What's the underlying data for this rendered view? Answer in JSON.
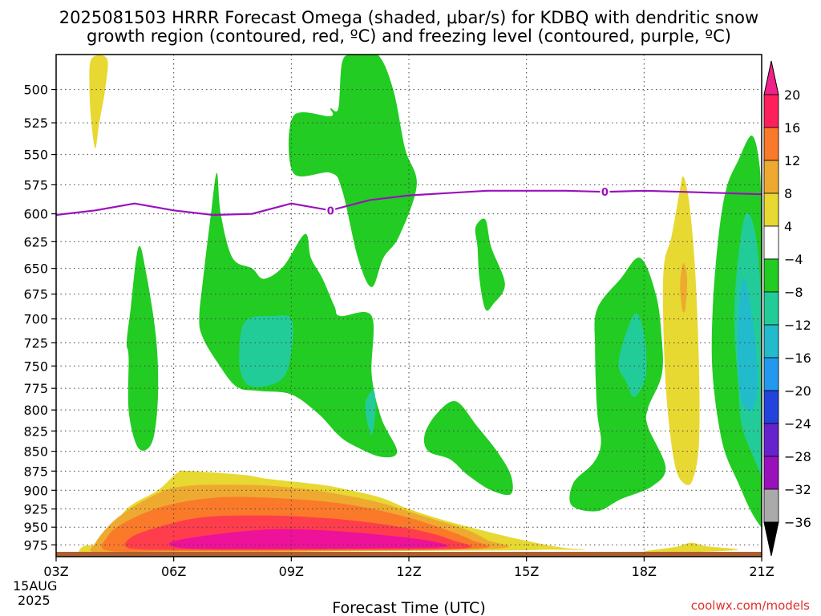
{
  "chart_data": {
    "type": "heatmap",
    "title_line1": "2025081503 HRRR Forecast Omega (shaded, μbar/s) for KDBQ with dendritic snow",
    "title_line2": "growth region (contoured, red, ºC) and freezing level (contoured, purple, ºC)",
    "xlabel": "Forecast Time (UTC)",
    "credit": "coolwx.com/models",
    "x_ticks": [
      "03Z",
      "06Z",
      "09Z",
      "12Z",
      "15Z",
      "18Z",
      "21Z"
    ],
    "x_date_line1": "15AUG",
    "x_date_line2": "2025",
    "x_range_hours": [
      3,
      21
    ],
    "y_ticks": [
      500,
      525,
      550,
      575,
      600,
      625,
      650,
      675,
      700,
      725,
      750,
      775,
      800,
      825,
      850,
      875,
      900,
      925,
      950,
      975
    ],
    "y_range_mb": [
      475,
      992
    ],
    "y_scale": "log",
    "grid": true,
    "colorbar": {
      "labels": [
        "20",
        "16",
        "12",
        "8",
        "4",
        "−4",
        "−8",
        "−12",
        "−16",
        "−20",
        "−24",
        "−28",
        "−32",
        "−36"
      ],
      "colors": [
        "#ff1f5a",
        "#fa7a2a",
        "#eeaa30",
        "#e8d832",
        "#ffffff",
        "#22cc22",
        "#22cc99",
        "#22bbcc",
        "#2299ee",
        "#2244dd",
        "#6622cc",
        "#9911bb",
        "#aaaaaa"
      ],
      "top_arrow_color": "#ee2288",
      "bottom_arrow_color": "#000000"
    },
    "colors": {
      "pos4": "#e8d832",
      "pos8": "#eeaa30",
      "pos12": "#fa7a2a",
      "pos16": "#ff3d4d",
      "pos20": "#ee1199",
      "neg4": "#22cc22",
      "neg8": "#22cc99",
      "neg12": "#22bbcc",
      "freezing": "#9911bb",
      "ground": "#b06030"
    },
    "freezing_level": {
      "label": "0",
      "hours": [
        3.0,
        4.0,
        5.0,
        6.0,
        7.0,
        8.0,
        9.0,
        10.0,
        11.0,
        12.0,
        13.0,
        14.0,
        15.0,
        16.0,
        17.0,
        18.0,
        19.0,
        20.0,
        21.0
      ],
      "mb": [
        601,
        597,
        591,
        597,
        601,
        600,
        591,
        597,
        588,
        584,
        582,
        580,
        580,
        580,
        581,
        580,
        581,
        582,
        583
      ],
      "label_hours": [
        10.0,
        17.0
      ]
    },
    "shaded_regions": [
      {
        "level": "pos4",
        "points": [
          [
            3.7,
            977
          ],
          [
            4.2,
            970
          ],
          [
            4.8,
            925
          ],
          [
            5.6,
            900
          ],
          [
            6.1,
            877
          ],
          [
            6.4,
            875
          ],
          [
            7.8,
            880
          ],
          [
            8.4,
            885
          ],
          [
            9.8,
            893
          ],
          [
            10.5,
            900
          ],
          [
            11.3,
            910
          ],
          [
            12.0,
            925
          ],
          [
            13.0,
            942
          ],
          [
            14.5,
            963
          ],
          [
            15.8,
            978
          ],
          [
            16.5,
            982
          ],
          [
            15.5,
            982
          ],
          [
            14.5,
            983
          ],
          [
            9.0,
            985
          ],
          [
            5.0,
            988
          ],
          [
            3.7,
            988
          ]
        ]
      },
      {
        "level": "pos8",
        "points": [
          [
            4.0,
            972
          ],
          [
            4.5,
            940
          ],
          [
            5.3,
            912
          ],
          [
            6.2,
            895
          ],
          [
            8.0,
            893
          ],
          [
            9.3,
            898
          ],
          [
            10.2,
            905
          ],
          [
            11.3,
            917
          ],
          [
            12.5,
            937
          ],
          [
            13.4,
            952
          ],
          [
            14.0,
            968
          ],
          [
            14.3,
            980
          ],
          [
            10.0,
            984
          ],
          [
            5.5,
            986
          ],
          [
            4.0,
            986
          ]
        ]
      },
      {
        "level": "pos12",
        "points": [
          [
            4.3,
            964
          ],
          [
            4.7,
            945
          ],
          [
            5.7,
            922
          ],
          [
            7.0,
            910
          ],
          [
            8.5,
            910
          ],
          [
            10.2,
            917
          ],
          [
            11.5,
            930
          ],
          [
            12.6,
            947
          ],
          [
            13.6,
            968
          ],
          [
            13.8,
            980
          ],
          [
            10.0,
            983
          ],
          [
            6.0,
            984
          ],
          [
            4.3,
            983
          ]
        ]
      },
      {
        "level": "pos16",
        "points": [
          [
            4.9,
            965
          ],
          [
            5.6,
            950
          ],
          [
            6.8,
            936
          ],
          [
            8.5,
            934
          ],
          [
            10.0,
            938
          ],
          [
            11.2,
            945
          ],
          [
            12.3,
            955
          ],
          [
            13.1,
            968
          ],
          [
            13.4,
            980
          ],
          [
            10.0,
            982
          ],
          [
            6.5,
            982
          ],
          [
            4.9,
            980
          ]
        ]
      },
      {
        "level": "pos20",
        "points": [
          [
            5.9,
            972
          ],
          [
            6.8,
            962
          ],
          [
            8.5,
            953
          ],
          [
            10.0,
            955
          ],
          [
            11.5,
            962
          ],
          [
            12.6,
            970
          ],
          [
            12.9,
            978
          ],
          [
            11.0,
            980
          ],
          [
            8.0,
            981
          ],
          [
            6.3,
            980
          ]
        ]
      },
      {
        "level": "pos4",
        "points": [
          [
            3.9,
            478
          ],
          [
            4.3,
            478
          ],
          [
            4.25,
            500
          ],
          [
            4.1,
            525
          ],
          [
            4.0,
            545
          ],
          [
            3.9,
            525
          ],
          [
            3.85,
            500
          ]
        ]
      },
      {
        "level": "pos4",
        "points": [
          [
            18.5,
            650
          ],
          [
            18.7,
            620
          ],
          [
            18.9,
            582
          ],
          [
            19.0,
            568
          ],
          [
            19.15,
            590
          ],
          [
            19.3,
            650
          ],
          [
            19.4,
            750
          ],
          [
            19.4,
            840
          ],
          [
            19.25,
            885
          ],
          [
            19.05,
            892
          ],
          [
            18.8,
            870
          ],
          [
            18.6,
            800
          ],
          [
            18.5,
            720
          ]
        ]
      },
      {
        "level": "pos8",
        "points": [
          [
            18.92,
            665
          ],
          [
            19.0,
            645
          ],
          [
            19.1,
            660
          ],
          [
            19.05,
            690
          ],
          [
            18.97,
            690
          ]
        ]
      },
      {
        "level": "pos4",
        "points": [
          [
            18.0,
            985
          ],
          [
            18.8,
            978
          ],
          [
            19.2,
            972
          ],
          [
            19.6,
            977
          ],
          [
            20.4,
            982
          ],
          [
            19.0,
            986
          ]
        ]
      },
      {
        "level": "neg4",
        "points": [
          [
            4.8,
            725
          ],
          [
            4.9,
            690
          ],
          [
            5.1,
            630
          ],
          [
            5.3,
            655
          ],
          [
            5.55,
            720
          ],
          [
            5.6,
            780
          ],
          [
            5.5,
            830
          ],
          [
            5.3,
            848
          ],
          [
            5.05,
            842
          ],
          [
            4.85,
            800
          ],
          [
            4.85,
            740
          ]
        ]
      },
      {
        "level": "neg4",
        "points": [
          [
            6.65,
            700
          ],
          [
            6.75,
            660
          ],
          [
            6.95,
            600
          ],
          [
            7.1,
            565
          ],
          [
            7.2,
            600
          ],
          [
            7.5,
            640
          ],
          [
            8.0,
            650
          ],
          [
            8.3,
            660
          ],
          [
            8.8,
            648
          ],
          [
            9.35,
            618
          ],
          [
            9.5,
            640
          ],
          [
            9.8,
            660
          ],
          [
            10.1,
            687
          ],
          [
            10.25,
            697
          ],
          [
            11.05,
            697
          ],
          [
            11.05,
            760
          ],
          [
            11.3,
            810
          ],
          [
            11.7,
            850
          ],
          [
            11.3,
            857
          ],
          [
            10.6,
            843
          ],
          [
            10.2,
            830
          ],
          [
            9.7,
            805
          ],
          [
            9.0,
            782
          ],
          [
            8.2,
            778
          ],
          [
            7.6,
            773
          ],
          [
            7.1,
            745
          ],
          [
            6.75,
            720
          ]
        ]
      },
      {
        "level": "neg8",
        "points": [
          [
            7.7,
            718
          ],
          [
            7.9,
            700
          ],
          [
            8.5,
            697
          ],
          [
            9.0,
            700
          ],
          [
            9.0,
            735
          ],
          [
            8.75,
            765
          ],
          [
            8.0,
            773
          ],
          [
            7.7,
            755
          ]
        ]
      },
      {
        "level": "neg8",
        "points": [
          [
            10.9,
            790
          ],
          [
            11.1,
            777
          ],
          [
            11.15,
            800
          ],
          [
            11.05,
            830
          ],
          [
            10.92,
            810
          ]
        ]
      },
      {
        "level": "neg4",
        "points": [
          [
            9.05,
            520
          ],
          [
            10.0,
            520
          ],
          [
            10.0,
            514
          ],
          [
            10.2,
            514
          ],
          [
            10.3,
            480
          ],
          [
            10.6,
            475
          ],
          [
            11.2,
            475
          ],
          [
            11.6,
            500
          ],
          [
            11.9,
            545
          ],
          [
            12.2,
            575
          ],
          [
            11.75,
            620
          ],
          [
            11.35,
            640
          ],
          [
            11.05,
            668
          ],
          [
            10.7,
            640
          ],
          [
            10.3,
            580
          ],
          [
            10.0,
            565
          ],
          [
            9.05,
            565
          ]
        ]
      },
      {
        "level": "neg4",
        "points": [
          [
            13.7,
            612
          ],
          [
            13.95,
            605
          ],
          [
            14.1,
            630
          ],
          [
            14.45,
            665
          ],
          [
            14.15,
            685
          ],
          [
            13.95,
            690
          ],
          [
            13.8,
            660
          ],
          [
            13.75,
            630
          ]
        ]
      },
      {
        "level": "neg4",
        "points": [
          [
            12.4,
            830
          ],
          [
            12.7,
            805
          ],
          [
            13.2,
            790
          ],
          [
            13.75,
            820
          ],
          [
            14.25,
            850
          ],
          [
            14.6,
            880
          ],
          [
            14.6,
            905
          ],
          [
            14.1,
            900
          ],
          [
            13.5,
            880
          ],
          [
            13.05,
            860
          ],
          [
            12.5,
            850
          ]
        ]
      },
      {
        "level": "neg4",
        "points": [
          [
            16.8,
            690
          ],
          [
            17.4,
            660
          ],
          [
            17.9,
            640
          ],
          [
            18.3,
            675
          ],
          [
            18.45,
            720
          ],
          [
            18.45,
            760
          ],
          [
            18.1,
            798
          ],
          [
            18.1,
            820
          ],
          [
            18.55,
            870
          ],
          [
            18.2,
            895
          ],
          [
            17.4,
            912
          ],
          [
            16.8,
            928
          ],
          [
            16.15,
            920
          ],
          [
            16.2,
            890
          ],
          [
            16.7,
            865
          ],
          [
            16.9,
            840
          ],
          [
            16.8,
            800
          ],
          [
            16.75,
            730
          ]
        ]
      },
      {
        "level": "neg8",
        "points": [
          [
            17.35,
            745
          ],
          [
            17.75,
            695
          ],
          [
            18.0,
            715
          ],
          [
            18.05,
            760
          ],
          [
            17.75,
            785
          ],
          [
            17.55,
            768
          ]
        ]
      },
      {
        "level": "neg4",
        "points": [
          [
            20.1,
            578
          ],
          [
            20.4,
            555
          ],
          [
            20.75,
            535
          ],
          [
            20.95,
            560
          ],
          [
            21.0,
            610
          ],
          [
            21.1,
            660
          ],
          [
            21.25,
            700
          ],
          [
            21.55,
            730
          ],
          [
            21.55,
            960
          ],
          [
            21.25,
            965
          ],
          [
            20.8,
            935
          ],
          [
            20.4,
            890
          ],
          [
            20.0,
            840
          ],
          [
            19.75,
            760
          ],
          [
            19.75,
            690
          ],
          [
            19.9,
            620
          ]
        ]
      },
      {
        "level": "neg8",
        "points": [
          [
            20.4,
            640
          ],
          [
            20.6,
            600
          ],
          [
            20.85,
            620
          ],
          [
            21.05,
            700
          ],
          [
            21.3,
            760
          ],
          [
            21.5,
            820
          ],
          [
            21.5,
            950
          ],
          [
            21.3,
            920
          ],
          [
            20.9,
            870
          ],
          [
            20.5,
            820
          ],
          [
            20.4,
            770
          ],
          [
            20.3,
            700
          ]
        ]
      },
      {
        "level": "neg12",
        "points": [
          [
            20.4,
            700
          ],
          [
            20.55,
            660
          ],
          [
            20.8,
            710
          ],
          [
            20.9,
            770
          ],
          [
            20.75,
            800
          ],
          [
            20.5,
            790
          ],
          [
            20.4,
            750
          ]
        ]
      }
    ]
  }
}
